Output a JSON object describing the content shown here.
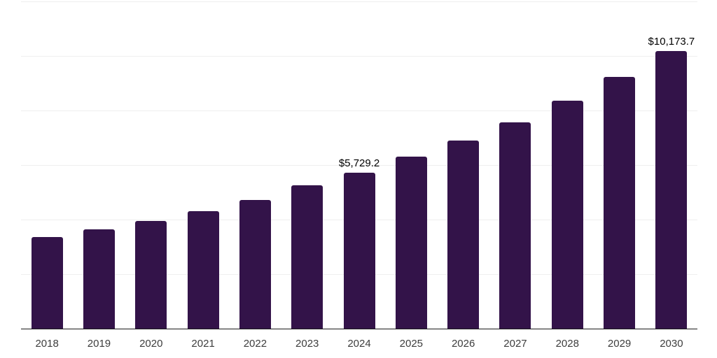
{
  "chart_data": {
    "type": "bar",
    "title": "",
    "xlabel": "",
    "ylabel": "",
    "categories": [
      "2018",
      "2019",
      "2020",
      "2021",
      "2022",
      "2023",
      "2024",
      "2025",
      "2026",
      "2027",
      "2028",
      "2029",
      "2030"
    ],
    "values": [
      3350,
      3640,
      3950,
      4310,
      4720,
      5250,
      5729.2,
      6310,
      6900,
      7560,
      8360,
      9230,
      10173.7
    ],
    "ylim": [
      0,
      12000
    ],
    "gridline_step": 2000,
    "grid": true,
    "legend": "none",
    "bar_color": "#331349",
    "data_labels": [
      {
        "category": "2024",
        "text": "$5,729.2"
      },
      {
        "category": "2030",
        "text": "$10,173.7"
      }
    ]
  },
  "colors": {
    "background": "#ffffff",
    "bar": "#331349",
    "gridline": "#efefef",
    "axis_line": "#1a1a1a",
    "tick_label": "#3d3d3d",
    "data_label": "#000000"
  }
}
